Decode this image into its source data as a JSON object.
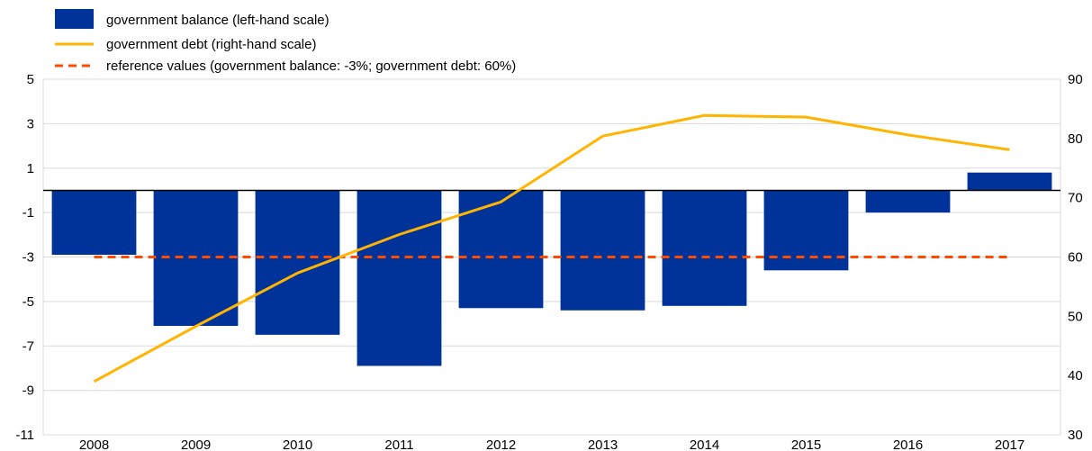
{
  "chart_data": {
    "type": "bar",
    "categories": [
      "2008",
      "2009",
      "2010",
      "2011",
      "2012",
      "2013",
      "2014",
      "2015",
      "2016",
      "2017"
    ],
    "series": [
      {
        "name": "government balance (left-hand scale)",
        "type": "bar",
        "axis": "left",
        "color": "#003399",
        "values": [
          -2.9,
          -6.1,
          -6.5,
          -7.9,
          -5.3,
          -5.4,
          -5.2,
          -3.6,
          -1.0,
          0.8
        ]
      },
      {
        "name": "government debt (right-hand scale)",
        "type": "line",
        "axis": "right",
        "color": "#FFB400",
        "values": [
          39.0,
          48.3,
          57.3,
          63.8,
          69.3,
          80.4,
          83.9,
          83.6,
          80.6,
          78.1
        ]
      },
      {
        "name": "reference values (government balance: -3%; government debt: 60%)",
        "type": "dashed-line",
        "axis": "left",
        "color": "#FF4B00",
        "value": -3
      }
    ],
    "left_axis": {
      "ylim": [
        -11,
        5
      ],
      "ticks": [
        "5",
        "3",
        "1",
        "-1",
        "-3",
        "-5",
        "-7",
        "-9",
        "-11"
      ]
    },
    "right_axis": {
      "ylim": [
        30,
        90
      ],
      "ticks": [
        "90",
        "80",
        "70",
        "60",
        "50",
        "40",
        "30"
      ]
    },
    "legend": "top-left",
    "grid": true
  }
}
